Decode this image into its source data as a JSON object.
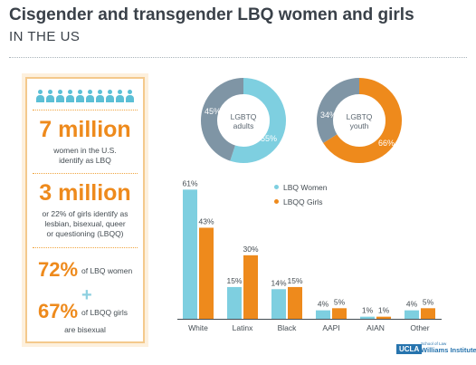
{
  "header": {
    "title": "Cisgender and transgender LBQ women and girls",
    "subtitle": "IN THE US"
  },
  "panel": {
    "people_count": 10,
    "stat1": {
      "value": "7 million",
      "text_lines": [
        "women in the U.S.",
        "identify as LBQ"
      ]
    },
    "stat2": {
      "value": "3 million",
      "text_lines": [
        "or 22% of girls identify as",
        "lesbian, bisexual, queer",
        "or questioning (LBQQ)"
      ]
    },
    "stat3": {
      "pct_women": "72%",
      "label_women": "of LBQ women",
      "plus": "+",
      "pct_girls": "67%",
      "label_girls": "of LBQQ girls",
      "footer": "are bisexual"
    }
  },
  "colors": {
    "women": "#7ecfe0",
    "girls": "#ee8a1c",
    "gray": "#7f95a5",
    "accent": "#ee8a1c"
  },
  "donuts": [
    {
      "label_lines": [
        "LGBTQ",
        "adults"
      ],
      "segments": [
        {
          "label": "55%",
          "value": 55,
          "color": "#7ecfe0"
        },
        {
          "label": "45%",
          "value": 45,
          "color": "#7f95a5"
        }
      ]
    },
    {
      "label_lines": [
        "LGBTQ",
        "youth"
      ],
      "segments": [
        {
          "label": "66%",
          "value": 66,
          "color": "#ee8a1c"
        },
        {
          "label": "34%",
          "value": 34,
          "color": "#7f95a5"
        }
      ]
    }
  ],
  "chart_data": [
    {
      "type": "pie",
      "categories": [
        "LGBTQ",
        "Other"
      ],
      "values": [
        55,
        45
      ],
      "center_label": "LGBTQ adults"
    },
    {
      "type": "pie",
      "categories": [
        "LGBTQ",
        "Other"
      ],
      "values": [
        66,
        34
      ],
      "center_label": "LGBTQ youth"
    },
    {
      "type": "bar",
      "categories": [
        "White",
        "Latinx",
        "Black",
        "AAPI",
        "AIAN",
        "Other"
      ],
      "series": [
        {
          "name": "LBQ Women",
          "values": [
            61,
            15,
            14,
            4,
            1,
            4
          ],
          "labels": [
            "61%",
            "15%",
            "14%",
            "4%",
            "1%",
            "4%"
          ],
          "color": "#7ecfe0"
        },
        {
          "name": "LBQQ Girls",
          "values": [
            43,
            30,
            15,
            5,
            1,
            5
          ],
          "labels": [
            "43%",
            "30%",
            "15%",
            "5%",
            "1%",
            "5%"
          ],
          "color": "#ee8a1c"
        }
      ],
      "ylim": [
        0,
        65
      ],
      "legend": "top-right",
      "grid": false
    }
  ],
  "logo": {
    "brand": "UCLA",
    "small": "School of Law",
    "name": "Williams Institute"
  }
}
